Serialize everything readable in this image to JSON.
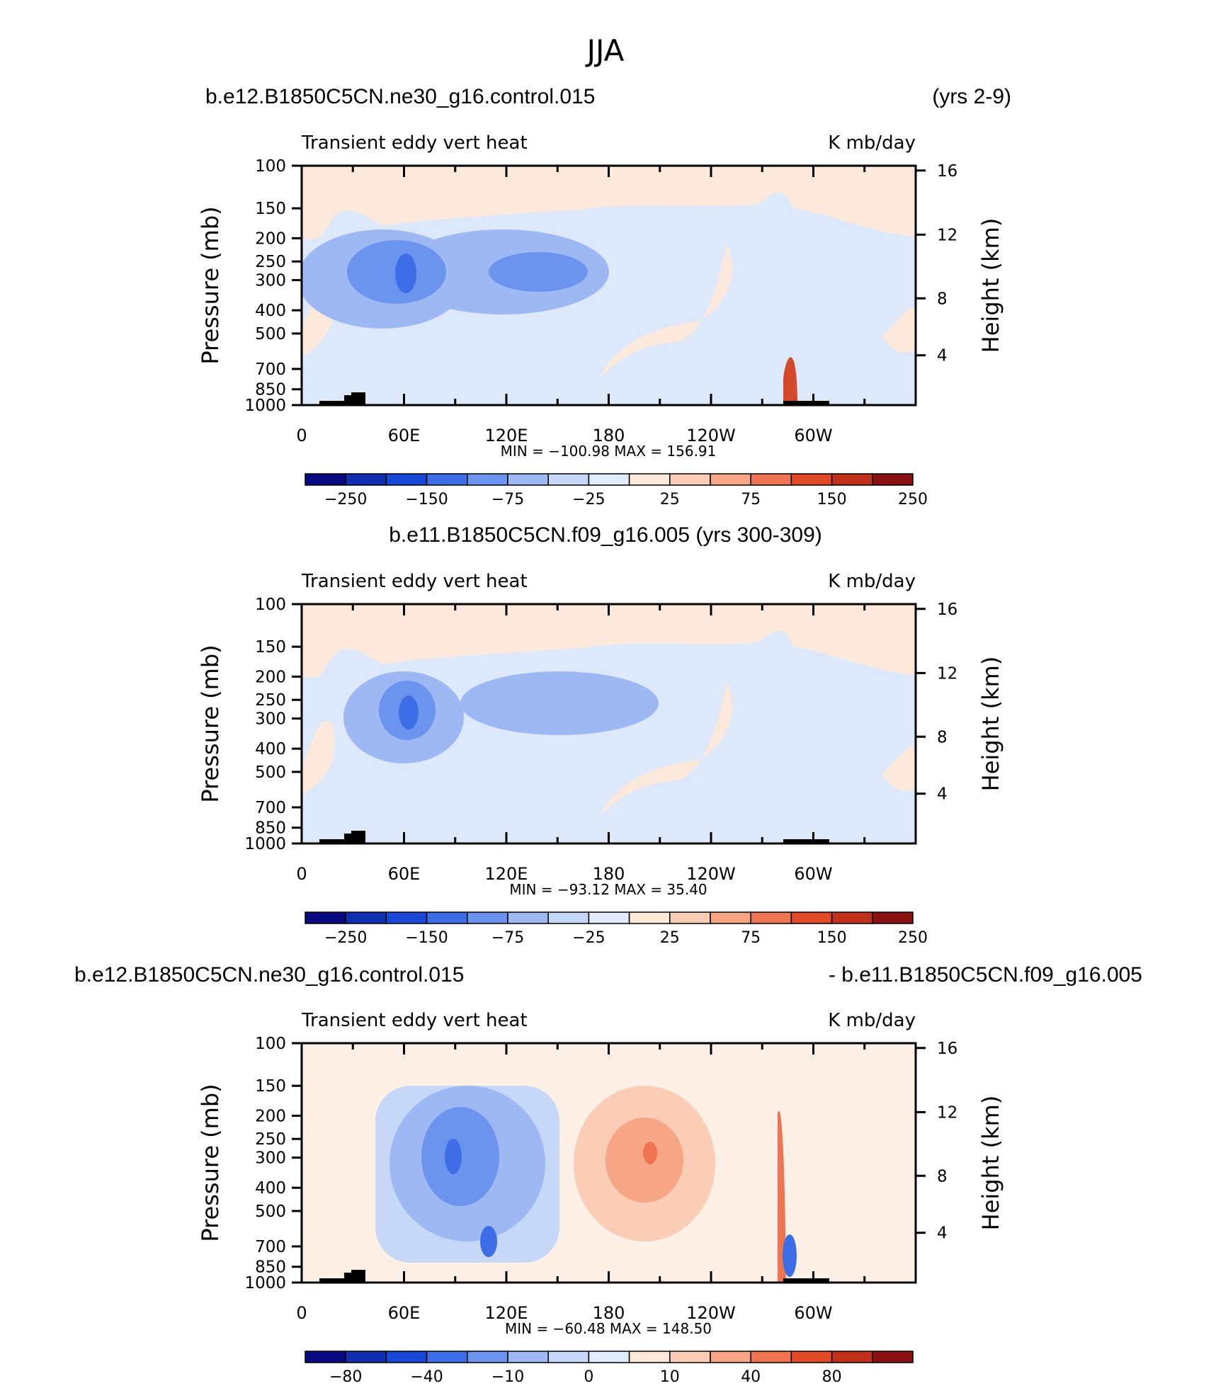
{
  "figure": {
    "title": "JJA"
  },
  "colors": {
    "levels": [
      "#0a0a80",
      "#0f2fb0",
      "#1a48d6",
      "#3d6ee8",
      "#6c93ee",
      "#9db8f2",
      "#c6d7f7",
      "#e1ecfc",
      "#fde9dc",
      "#fbcdb6",
      "#f6a685",
      "#ef7552",
      "#e04a27",
      "#c0301a",
      "#8a1111"
    ],
    "neutral": "#dce9fb",
    "warm": "#fde9dc",
    "terrain": "#000000"
  },
  "chart_data": [
    {
      "type": "heatmap",
      "header_left": "b.e12.B1850C5CN.ne30_g16.control.015",
      "header_right": "(yrs 2-9)",
      "subtitle": "Transient eddy vert heat",
      "units": "K mb/day",
      "xlabel": "",
      "ylabel": "Pressure (mb)",
      "ylabel_right": "Height (km)",
      "x_ticks": [
        "0",
        "60E",
        "120E",
        "180",
        "120W",
        "60W"
      ],
      "y_ticks": [
        "100",
        "150",
        "200",
        "250",
        "300",
        "400",
        "500",
        "700",
        "850",
        "1000"
      ],
      "y_ticks_right": [
        "16",
        "12",
        "8",
        "4"
      ],
      "ylim": [
        1000,
        100
      ],
      "min_max_label": "MIN = −100.98   MAX =  156.91",
      "min": -100.98,
      "max": 156.91,
      "colorbar_labels": [
        "−250",
        "−150",
        "−75",
        "−25",
        "25",
        "75",
        "150",
        "250"
      ]
    },
    {
      "type": "heatmap",
      "header_left": "b.e11.B1850C5CN.f09_g16.005 (yrs 300-309)",
      "header_right": "",
      "subtitle": "Transient eddy vert heat",
      "units": "K mb/day",
      "xlabel": "",
      "ylabel": "Pressure (mb)",
      "ylabel_right": "Height (km)",
      "x_ticks": [
        "0",
        "60E",
        "120E",
        "180",
        "120W",
        "60W"
      ],
      "y_ticks": [
        "100",
        "150",
        "200",
        "250",
        "300",
        "400",
        "500",
        "700",
        "850",
        "1000"
      ],
      "y_ticks_right": [
        "16",
        "12",
        "8",
        "4"
      ],
      "ylim": [
        1000,
        100
      ],
      "min_max_label": "MIN =  −93.12   MAX =   35.40",
      "min": -93.12,
      "max": 35.4,
      "colorbar_labels": [
        "−250",
        "−150",
        "−75",
        "−25",
        "25",
        "75",
        "150",
        "250"
      ]
    },
    {
      "type": "heatmap",
      "header_left": "b.e12.B1850C5CN.ne30_g16.control.015",
      "header_right": "- b.e11.B1850C5CN.f09_g16.005",
      "subtitle": "Transient eddy vert heat",
      "units": "K mb/day",
      "xlabel": "",
      "ylabel": "Pressure (mb)",
      "ylabel_right": "Height (km)",
      "x_ticks": [
        "0",
        "60E",
        "120E",
        "180",
        "120W",
        "60W"
      ],
      "y_ticks": [
        "100",
        "150",
        "200",
        "250",
        "300",
        "400",
        "500",
        "700",
        "850",
        "1000"
      ],
      "y_ticks_right": [
        "16",
        "12",
        "8",
        "4"
      ],
      "ylim": [
        1000,
        100
      ],
      "min_max_label": "MIN =  −60.48   MAX =  148.50",
      "min": -60.48,
      "max": 148.5,
      "colorbar_labels": [
        "−80",
        "−40",
        "−10",
        "0",
        "10",
        "40",
        "80"
      ]
    }
  ]
}
